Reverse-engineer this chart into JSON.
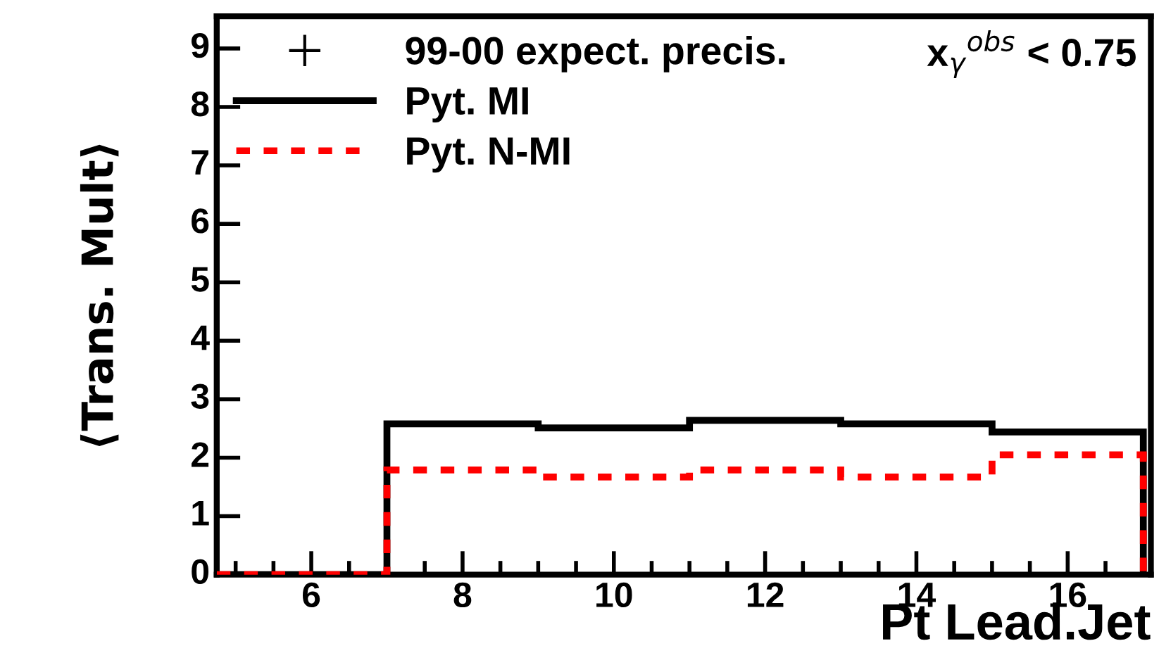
{
  "chart_data": {
    "type": "histogram",
    "xlabel": "Pt Lead.Jet",
    "ylabel": "⟨Trans. Mult⟩",
    "bins": [
      4.75,
      7,
      9,
      11,
      13,
      15,
      17
    ],
    "series": [
      {
        "name": "99-00 expect. precis.",
        "type": "scatter",
        "color": "#000000",
        "marker": "cross",
        "values": [
          null,
          null,
          null,
          null,
          null,
          null
        ]
      },
      {
        "name": "Pyt. MI",
        "color": "#000000",
        "line_style": "solid",
        "values": [
          0,
          2.58,
          2.51,
          2.64,
          2.58,
          2.44
        ]
      },
      {
        "name": "Pyt. N-MI",
        "color": "#ff0000",
        "line_style": "dashed",
        "values": [
          0,
          1.79,
          1.67,
          1.79,
          1.67,
          2.05
        ]
      }
    ],
    "annotations": [
      "x$_{γ}$$^{obs}$ < 0.75"
    ],
    "xlim": [
      4.75,
      17.1
    ],
    "ylim": [
      0,
      9.55
    ],
    "xticks": [
      6,
      8,
      10,
      12,
      14,
      16
    ],
    "yticks": [
      0,
      1,
      2,
      3,
      4,
      5,
      6,
      7,
      8,
      9
    ],
    "grid": false,
    "legend": "top left"
  }
}
